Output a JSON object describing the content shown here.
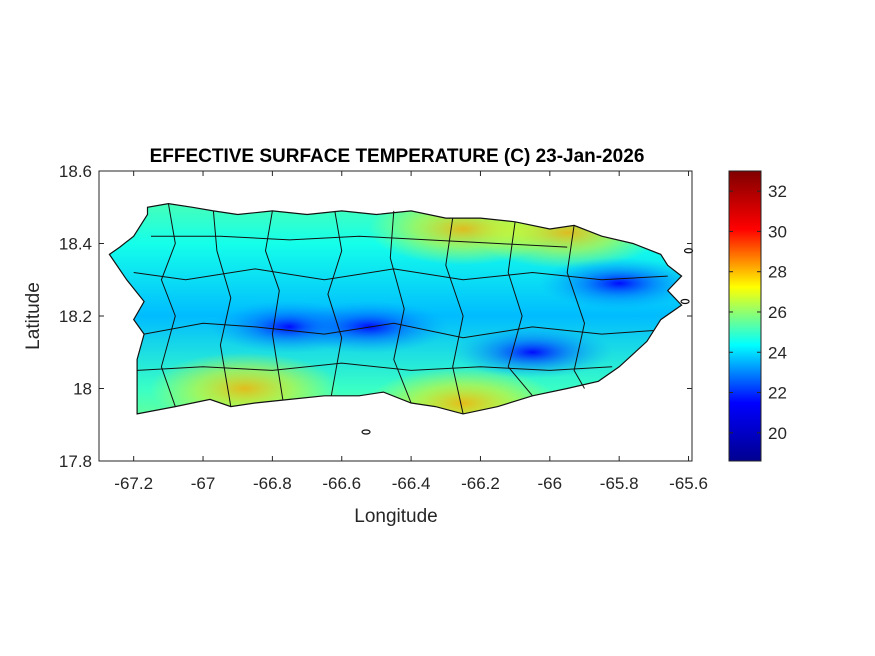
{
  "chart_data": {
    "type": "heatmap",
    "title": "EFFECTIVE SURFACE TEMPERATURE (C) 23-Jan-2026",
    "xlabel": "Longitude",
    "ylabel": "Latitude",
    "xlim": [
      -67.3,
      -65.59
    ],
    "ylim": [
      17.8,
      18.6
    ],
    "x_ticks": [
      -67.2,
      -67,
      -66.8,
      -66.6,
      -66.4,
      -66.2,
      -66,
      -65.8,
      -65.6
    ],
    "x_tick_labels": [
      "-67.2",
      "-67",
      "-66.8",
      "-66.6",
      "-66.4",
      "-66.2",
      "-66",
      "-65.8",
      "-65.6"
    ],
    "y_ticks": [
      17.8,
      18,
      18.2,
      18.4,
      18.6
    ],
    "y_tick_labels": [
      "17.8",
      "18",
      "18.2",
      "18.4",
      "18.6"
    ],
    "colorbar": {
      "colormap": "jet",
      "range": [
        18.6,
        33
      ],
      "ticks": [
        20,
        22,
        24,
        26,
        28,
        30,
        32
      ],
      "tick_labels": [
        "20",
        "22",
        "24",
        "26",
        "28",
        "30",
        "32"
      ],
      "colors": [
        "#00008f",
        "#0000ff",
        "#00ffff",
        "#ffff00",
        "#ff0000",
        "#800000"
      ]
    },
    "cool_zones": [
      {
        "lon": -66.75,
        "lat": 18.17,
        "value": 20.5
      },
      {
        "lon": -66.52,
        "lat": 18.17,
        "value": 21.5
      },
      {
        "lon": -66.05,
        "lat": 18.1,
        "value": 21.5
      },
      {
        "lon": -65.8,
        "lat": 18.29,
        "value": 20.5
      }
    ],
    "warm_zones": [
      {
        "lon": -66.25,
        "lat": 17.96,
        "value": 28.5
      },
      {
        "lon": -66.88,
        "lat": 18.0,
        "value": 28.5
      },
      {
        "lon": -66.25,
        "lat": 18.44,
        "value": 27.5
      },
      {
        "lon": -65.95,
        "lat": 18.43,
        "value": 27.5
      }
    ],
    "grid": false,
    "legend": "none"
  }
}
